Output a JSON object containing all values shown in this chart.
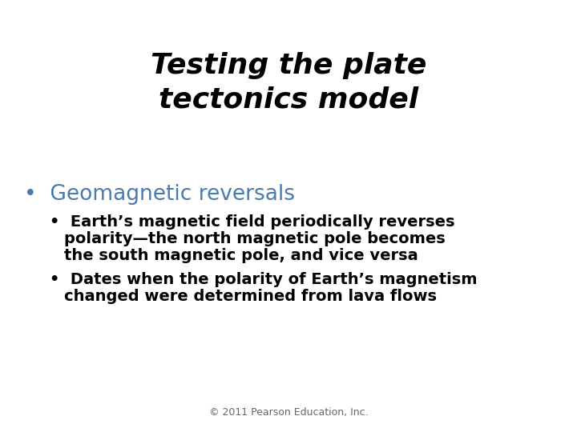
{
  "title_line1": "Testing the plate",
  "title_line2": "tectonics model",
  "title_color": "#000000",
  "title_fontsize": 26,
  "title_style": "italic",
  "title_weight": "bold",
  "bullet1_text": "Geomagnetic reversals",
  "bullet1_color": "#4a7aab",
  "bullet1_fontsize": 19,
  "bullet1_weight": "normal",
  "sub_bullet1_line1": "Earth’s magnetic field periodically reverses",
  "sub_bullet1_line2": "polarity—the north magnetic pole becomes",
  "sub_bullet1_line3": "the south magnetic pole, and vice versa",
  "sub_bullet2_line1": "Dates when the polarity of Earth’s magnetism",
  "sub_bullet2_line2": "changed were determined from lava flows",
  "sub_bullet_color": "#000000",
  "sub_bullet_fontsize": 14,
  "sub_bullet_weight": "bold",
  "footer_text": "© 2011 Pearson Education, Inc.",
  "footer_color": "#666666",
  "footer_fontsize": 9,
  "background_color": "#ffffff"
}
